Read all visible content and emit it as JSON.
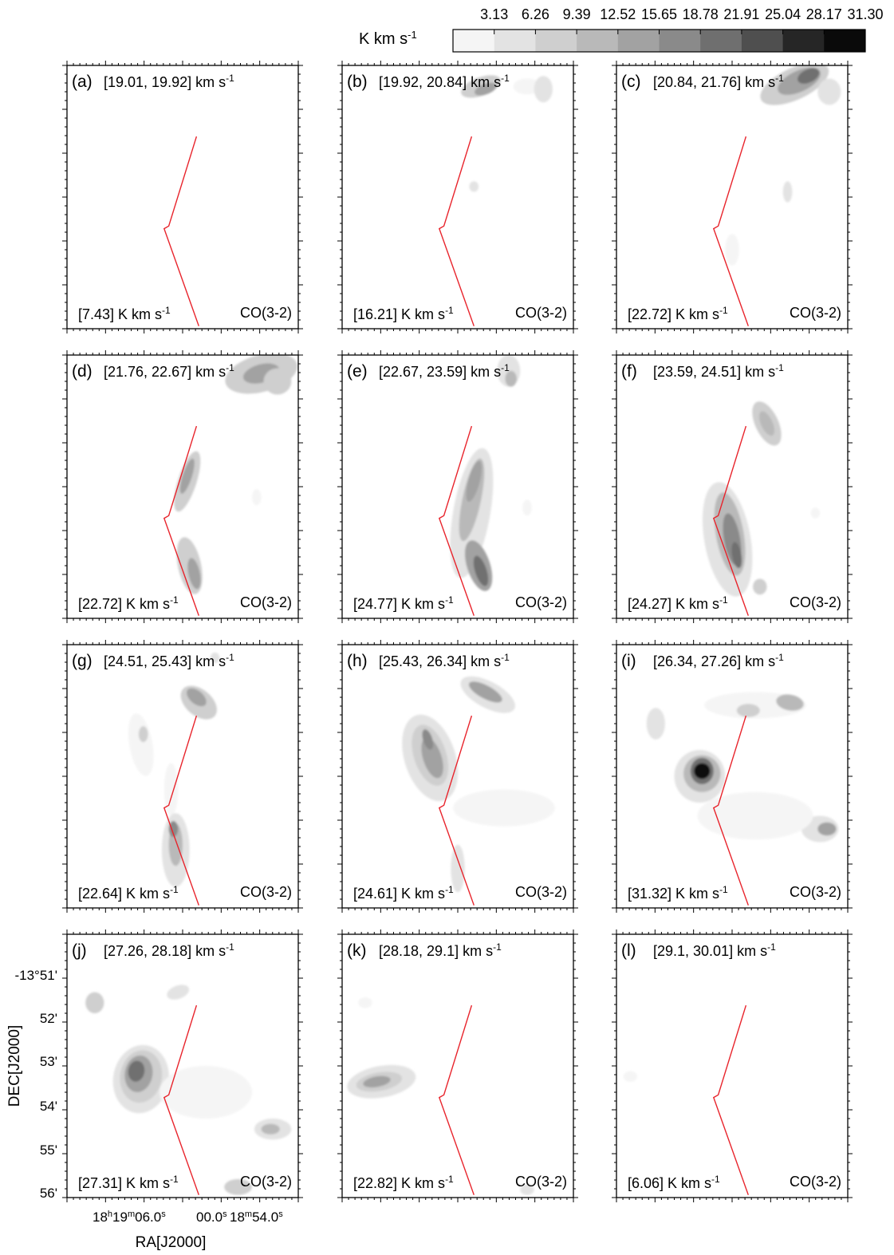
{
  "colorbar": {
    "unit_label": "K km s",
    "unit_sup": "-1",
    "tick_labels": [
      "3.13",
      "6.26",
      "9.39",
      "12.52",
      "15.65",
      "18.78",
      "21.91",
      "25.04",
      "28.17",
      "31.30"
    ],
    "colors": [
      "#f5f5f5",
      "#e3e3e3",
      "#cfcfcf",
      "#b9b9b9",
      "#a2a2a2",
      "#8a8a8a",
      "#6f6f6f",
      "#4f4f4f",
      "#262626",
      "#0a0a0a"
    ]
  },
  "axes": {
    "xlabel": "RA[J2000]",
    "ylabel": "DEC[J2000]",
    "x_ticks": [
      {
        "label": "18",
        "sup1": "h",
        "mid": "19",
        "sup2": "m",
        "tail": "06.0",
        "sup3": "s"
      },
      {
        "label": "00.0",
        "sup1": "s"
      },
      {
        "label": "18",
        "sup1": "m",
        "mid": "54.0",
        "sup2": "s"
      }
    ],
    "y_ticks": [
      "-13°51'",
      "52'",
      "53'",
      "54'",
      "55'",
      "56'"
    ]
  },
  "line_color": "#e8232b",
  "chart_data": {
    "type": "heatmap",
    "title": "",
    "xlabel": "RA[J2000]",
    "ylabel": "DEC[J2000]",
    "tracer": "CO(3-2)",
    "velocity_unit": "km s-1",
    "peak_unit": "K km s-1",
    "contour_levels": [
      3.13,
      6.26,
      9.39,
      12.52,
      15.65,
      18.78,
      21.91,
      25.04,
      28.17,
      31.3
    ],
    "panels": [
      {
        "id": "(a)",
        "v_range": [
          19.01,
          19.92
        ],
        "peak": 7.43
      },
      {
        "id": "(b)",
        "v_range": [
          19.92,
          20.84
        ],
        "peak": 16.21
      },
      {
        "id": "(c)",
        "v_range": [
          20.84,
          21.76
        ],
        "peak": 22.72
      },
      {
        "id": "(d)",
        "v_range": [
          21.76,
          22.67
        ],
        "peak": 22.72
      },
      {
        "id": "(e)",
        "v_range": [
          22.67,
          23.59
        ],
        "peak": 24.77
      },
      {
        "id": "(f)",
        "v_range": [
          23.59,
          24.51
        ],
        "peak": 24.27
      },
      {
        "id": "(g)",
        "v_range": [
          24.51,
          25.43
        ],
        "peak": 22.64
      },
      {
        "id": "(h)",
        "v_range": [
          25.43,
          26.34
        ],
        "peak": 24.61
      },
      {
        "id": "(i)",
        "v_range": [
          26.34,
          27.26
        ],
        "peak": 31.32
      },
      {
        "id": "(j)",
        "v_range": [
          27.26,
          28.18
        ],
        "peak": 27.31
      },
      {
        "id": "(k)",
        "v_range": [
          28.18,
          29.1
        ],
        "peak": 22.82
      },
      {
        "id": "(l)",
        "v_range": [
          29.1,
          30.01
        ],
        "peak": 6.06
      }
    ]
  },
  "panel_labels": [
    {
      "id": "(a)",
      "range": "[19.01, 19.92] km s",
      "sup": "-1",
      "peak": "[7.43] K km s",
      "tracer": "CO(3-2)"
    },
    {
      "id": "(b)",
      "range": "[19.92, 20.84] km s",
      "sup": "-1",
      "peak": "[16.21] K km s",
      "tracer": "CO(3-2)"
    },
    {
      "id": "(c)",
      "range": "[20.84, 21.76] km s",
      "sup": "-1",
      "peak": "[22.72] K km s",
      "tracer": "CO(3-2)"
    },
    {
      "id": "(d)",
      "range": "[21.76, 22.67] km s",
      "sup": "-1",
      "peak": "[22.72] K km s",
      "tracer": "CO(3-2)"
    },
    {
      "id": "(e)",
      "range": "[22.67, 23.59] km s",
      "sup": "-1",
      "peak": "[24.77] K km s",
      "tracer": "CO(3-2)"
    },
    {
      "id": "(f)",
      "range": "[23.59, 24.51] km s",
      "sup": "-1",
      "peak": "[24.27] K km s",
      "tracer": "CO(3-2)"
    },
    {
      "id": "(g)",
      "range": "[24.51, 25.43] km s",
      "sup": "-1",
      "peak": "[22.64] K km s",
      "tracer": "CO(3-2)"
    },
    {
      "id": "(h)",
      "range": "[25.43, 26.34] km s",
      "sup": "-1",
      "peak": "[24.61] K km s",
      "tracer": "CO(3-2)"
    },
    {
      "id": "(i)",
      "range": "[26.34, 27.26] km s",
      "sup": "-1",
      "peak": "[31.32] K km s",
      "tracer": "CO(3-2)"
    },
    {
      "id": "(j)",
      "range": "[27.26, 28.18] km s",
      "sup": "-1",
      "peak": "[27.31] K km s",
      "tracer": "CO(3-2)"
    },
    {
      "id": "(k)",
      "range": "[28.18, 29.1] km s",
      "sup": "-1",
      "peak": "[22.82] K km s",
      "tracer": "CO(3-2)"
    },
    {
      "id": "(l)",
      "range": "[29.1, 30.01] km s",
      "sup": "-1",
      "peak": "[6.06] K km s",
      "tracer": "CO(3-2)"
    }
  ]
}
